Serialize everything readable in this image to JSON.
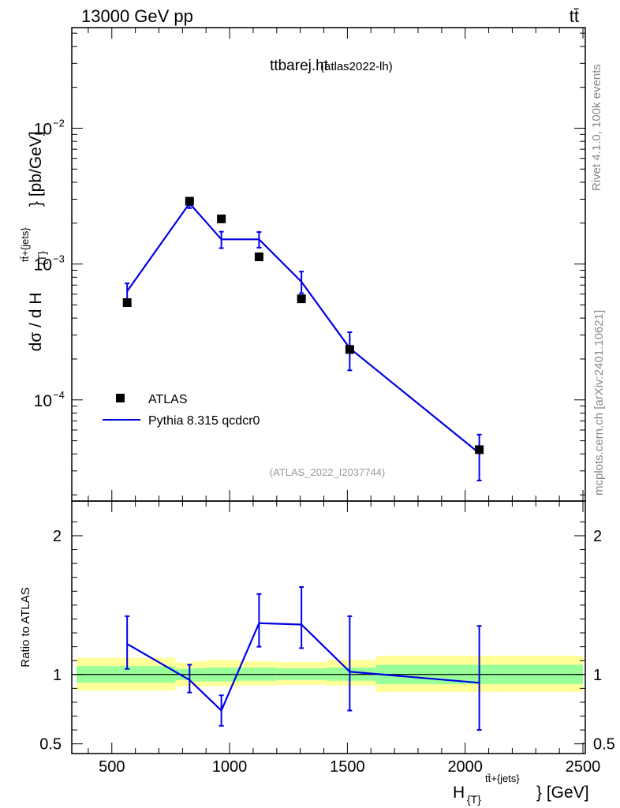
{
  "header": {
    "energy": "13000 GeV pp",
    "process": "tt̄"
  },
  "main_panel": {
    "title": "ttbarej.ht",
    "subtitle": "(atlas2022-lh)",
    "ylabel_main": "dσ / d H",
    "ylabel_sub": "{T}",
    "ylabel_sup": "tt̄+{jets}",
    "ylabel_unit": "} [pb/GeV]",
    "analysis_tag": "(ATLAS_2022_I2037744)"
  },
  "side_labels": {
    "rivet": "Rivet 4.1.0,  100k events",
    "mcplots": "mcplots.cern.ch [arXiv:2401.10621]"
  },
  "legend": {
    "data_label": "ATLAS",
    "mc_label": "Pythia 8.315 qcdcr0"
  },
  "ratio_panel": {
    "ylabel": "Ratio to ATLAS"
  },
  "x_axis": {
    "label_main": "H",
    "label_sub": "{T}",
    "label_sup": "tt̄+{jets}",
    "label_unit": "} [GeV]"
  },
  "colors": {
    "mc": "#0000e6",
    "data": "#000000",
    "band_inner": "#99ff99",
    "band_outer": "#ffff99"
  },
  "chart_data": [
    {
      "type": "line",
      "title": "ttbarej.ht",
      "xlabel": "H_{T}^{tt̄+{jets}} [GeV]",
      "ylabel": "dσ / d H_{T}^{tt̄+{jets}} [pb/GeV]",
      "yscale": "log",
      "xlim": [
        330,
        2510
      ],
      "ylim": [
        1.8e-05,
        0.055
      ],
      "x_ticks": [
        500,
        1000,
        1500,
        2000,
        2500
      ],
      "y_ticks": [
        {
          "value": 0.01,
          "base": "10",
          "exp": "−2"
        },
        {
          "value": 0.001,
          "base": "10",
          "exp": "−3"
        },
        {
          "value": 0.0001,
          "base": "10",
          "exp": "−4"
        }
      ],
      "legend_position": "bottom-left",
      "series": [
        {
          "name": "ATLAS",
          "kind": "data",
          "x": [
            565,
            830,
            965,
            1125,
            1305,
            1510,
            2060
          ],
          "y": [
            0.00052,
            0.0029,
            0.00215,
            0.00113,
            0.000555,
            0.000235,
            4.3e-05
          ]
        },
        {
          "name": "Pythia 8.315 qcdcr0",
          "kind": "mc",
          "x": [
            565,
            830,
            965,
            1125,
            1305,
            1510,
            2060
          ],
          "y": [
            0.00063,
            0.0028,
            0.00152,
            0.00152,
            0.00074,
            0.00024,
            4.05e-05
          ],
          "y_err_low": [
            0.000535,
            0.00258,
            0.00131,
            0.00132,
            0.00061,
            0.000165,
            2.55e-05
          ],
          "y_err_high": [
            0.00072,
            0.00298,
            0.00173,
            0.00172,
            0.00088,
            0.000315,
            5.55e-05
          ]
        }
      ]
    },
    {
      "type": "line",
      "title": "Ratio to ATLAS",
      "xlabel": "H_{T}^{tt̄+{jets}} [GeV]",
      "ylabel": "Ratio to ATLAS",
      "xlim": [
        330,
        2510
      ],
      "ylim": [
        0.43,
        2.25
      ],
      "x_ticks": [
        500,
        1000,
        1500,
        2000,
        2500
      ],
      "y_ticks": [
        0.5,
        1,
        2
      ],
      "reference_line": 1,
      "bands": {
        "edges": [
          350,
          770,
          840,
          900,
          1040,
          1200,
          1410,
          1620,
          2500
        ],
        "inner_low": [
          0.94,
          0.96,
          0.95,
          0.95,
          0.955,
          0.96,
          0.955,
          0.93
        ],
        "inner_high": [
          1.06,
          1.04,
          1.045,
          1.05,
          1.05,
          1.045,
          1.05,
          1.07
        ],
        "outer_low": [
          0.885,
          0.915,
          0.91,
          0.915,
          0.92,
          0.925,
          0.92,
          0.875
        ],
        "outer_high": [
          1.12,
          1.085,
          1.095,
          1.105,
          1.095,
          1.09,
          1.105,
          1.135
        ]
      },
      "series": [
        {
          "name": "Pythia 8.315 qcdcr0",
          "x": [
            565,
            830,
            965,
            1125,
            1305,
            1510,
            2060
          ],
          "y": [
            1.22,
            0.96,
            0.74,
            1.37,
            1.36,
            1.02,
            0.94
          ],
          "y_err_low": [
            1.04,
            0.87,
            0.63,
            1.2,
            1.19,
            0.74,
            0.6
          ],
          "y_err_high": [
            1.42,
            1.07,
            0.85,
            1.58,
            1.63,
            1.42,
            1.35
          ]
        }
      ]
    }
  ]
}
